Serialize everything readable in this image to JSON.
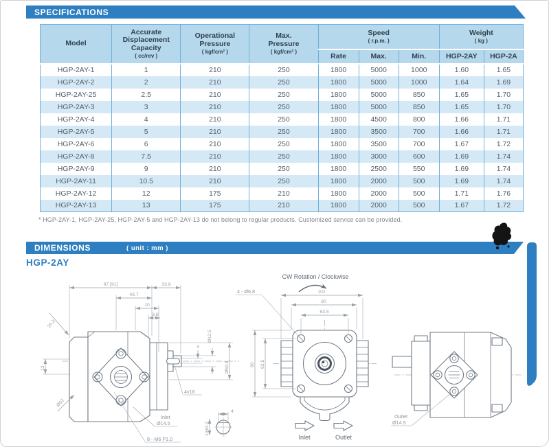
{
  "colors": {
    "banner": "#2e7fc1",
    "table_border": "#6fb0da",
    "header_bg": "#b5d8ec",
    "row_stripe": "#d4e9f5",
    "body_text": "#53606b",
    "header_text": "#31424d",
    "drawing_line": "#717b86",
    "dimension_text": "#97a0a8"
  },
  "specifications": {
    "banner": "SPECIFICATIONS",
    "table": {
      "headers": {
        "model": "Model",
        "capacity_title": "Accurate\nDisplacement\nCapacity",
        "capacity_unit": "( cc/rev )",
        "op_pressure_title": "Operational\nPressure",
        "op_pressure_unit": "( kgf/cm² )",
        "max_pressure_title": "Max.\nPressure",
        "max_pressure_unit": "( kgf/cm² )",
        "speed_title": "Speed",
        "speed_unit": "( r.p.m. )",
        "speed_sub": [
          "Rate",
          "Max.",
          "Min."
        ],
        "weight_title": "Weight",
        "weight_unit": "( kg )",
        "weight_sub": [
          "HGP-2AY",
          "HGP-2A"
        ]
      },
      "rows": [
        [
          "HGP-2AY-1",
          "1",
          "210",
          "250",
          "1800",
          "5000",
          "1000",
          "1.60",
          "1.65"
        ],
        [
          "HGP-2AY-2",
          "2",
          "210",
          "250",
          "1800",
          "5000",
          "1000",
          "1.64",
          "1.69"
        ],
        [
          "HGP-2AY-25",
          "2.5",
          "210",
          "250",
          "1800",
          "5000",
          "850",
          "1.65",
          "1.70"
        ],
        [
          "HGP-2AY-3",
          "3",
          "210",
          "250",
          "1800",
          "5000",
          "850",
          "1.65",
          "1.70"
        ],
        [
          "HGP-2AY-4",
          "4",
          "210",
          "250",
          "1800",
          "4500",
          "800",
          "1.66",
          "1.71"
        ],
        [
          "HGP-2AY-5",
          "5",
          "210",
          "250",
          "1800",
          "3500",
          "700",
          "1.66",
          "1.71"
        ],
        [
          "HGP-2AY-6",
          "6",
          "210",
          "250",
          "1800",
          "3500",
          "700",
          "1.67",
          "1.72"
        ],
        [
          "HGP-2AY-8",
          "7.5",
          "210",
          "250",
          "1800",
          "3000",
          "600",
          "1.69",
          "1.74"
        ],
        [
          "HGP-2AY-9",
          "9",
          "210",
          "250",
          "1800",
          "2500",
          "550",
          "1.69",
          "1.74"
        ],
        [
          "HGP-2AY-11",
          "10.5",
          "210",
          "250",
          "1800",
          "2000",
          "500",
          "1.69",
          "1.74"
        ],
        [
          "HGP-2AY-12",
          "12",
          "175",
          "210",
          "1800",
          "2000",
          "500",
          "1.71",
          "1.76"
        ],
        [
          "HGP-2AY-13",
          "13",
          "175",
          "210",
          "1800",
          "2000",
          "500",
          "1.67",
          "1.72"
        ]
      ]
    },
    "footnote": "* HGP-2AY-1, HGP-2AY-25, HGP-2AY-5 and HGP-2AY-13 do not belong to regular products. Customized service can be provided."
  },
  "dimensions": {
    "banner": "DIMENSIONS",
    "unit_note": "( unit : mm )",
    "model": "HGP-2AY",
    "rotation_note": "CW Rotation / Clockwise",
    "side": {
      "len_total": "97 [91]",
      "len_shaft": "33.8",
      "len_437": "43.7",
      "len_10": "10",
      "len_38": "3.8",
      "len_253": "25.3",
      "dia_shaft": "Ø12.5",
      "dia_pilot": "Ø50.8",
      "dim_13": "13",
      "dia_52": "Ø52",
      "key_spec": "4x16",
      "key_w": "4",
      "key_h": "14±0.2",
      "inlet": "Inlet",
      "inlet_dia": "Ø14.5",
      "bolt_spec": "8 - M6 P1.0"
    },
    "front": {
      "w_102": "102",
      "w_80": "80",
      "w_635": "63.5",
      "h_80": "80",
      "h_635": "63.5",
      "hole_spec": "4 - Ø6.8",
      "inlet": "Inlet",
      "outlet": "Outlet"
    },
    "rear": {
      "outlet": "Outlet",
      "outlet_dia": "Ø14.5"
    }
  }
}
